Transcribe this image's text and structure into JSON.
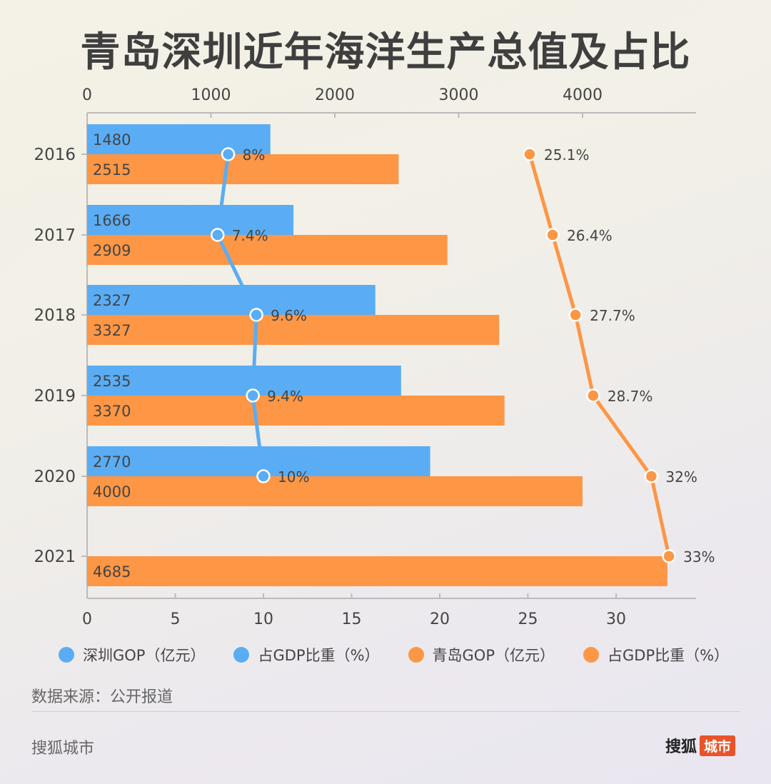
{
  "title": "青岛深圳近年海洋生产总值及占比",
  "colors": {
    "shenzhen": "#5aadf4",
    "qingdao": "#fd9645",
    "axis": "#bbbbbb",
    "text": "#444444"
  },
  "chart_data": {
    "type": "bar",
    "orientation": "horizontal",
    "title": "青岛深圳近年海洋生产总值及占比",
    "categories": [
      "2016",
      "2017",
      "2018",
      "2019",
      "2020",
      "2021"
    ],
    "top_axis": {
      "min": 0,
      "max": 4900,
      "ticks": [
        "0",
        "1000",
        "2000",
        "3000",
        "4000"
      ]
    },
    "bottom_axis": {
      "min": 0,
      "max": 34.5,
      "ticks": [
        "0",
        "5",
        "10",
        "15",
        "20",
        "25",
        "30"
      ]
    },
    "series": [
      {
        "name": "深圳GOP（亿元）",
        "type": "bar",
        "axis": "top",
        "color": "#5aadf4",
        "values": [
          1480,
          1666,
          2327,
          2535,
          2770,
          null
        ],
        "labels": [
          "1480",
          "1666",
          "2327",
          "2535",
          "2770",
          ""
        ]
      },
      {
        "name": "占GDP比重（%）",
        "type": "line",
        "axis": "bottom",
        "color": "#5aadf4",
        "values": [
          8,
          7.4,
          9.6,
          9.4,
          10,
          null
        ],
        "labels": [
          "8%",
          "7.4%",
          "9.6%",
          "9.4%",
          "10%",
          ""
        ]
      },
      {
        "name": "青岛GOP（亿元）",
        "type": "bar",
        "axis": "top",
        "color": "#fd9645",
        "values": [
          2515,
          2909,
          3327,
          3370,
          4000,
          4685
        ],
        "labels": [
          "2515",
          "2909",
          "3327",
          "3370",
          "4000",
          "4685"
        ]
      },
      {
        "name": "占GDP比重（%）",
        "type": "line",
        "axis": "bottom",
        "color": "#fd9645",
        "values": [
          25.1,
          26.4,
          27.7,
          28.7,
          32,
          33
        ],
        "labels": [
          "25.1%",
          "26.4%",
          "27.7%",
          "28.7%",
          "32%",
          "33%"
        ]
      }
    ],
    "legend_position": "bottom"
  },
  "source_note": "数据来源：公开报道",
  "footer": {
    "left": "搜狐城市",
    "logo_text": "搜狐",
    "logo_badge": "城市"
  }
}
